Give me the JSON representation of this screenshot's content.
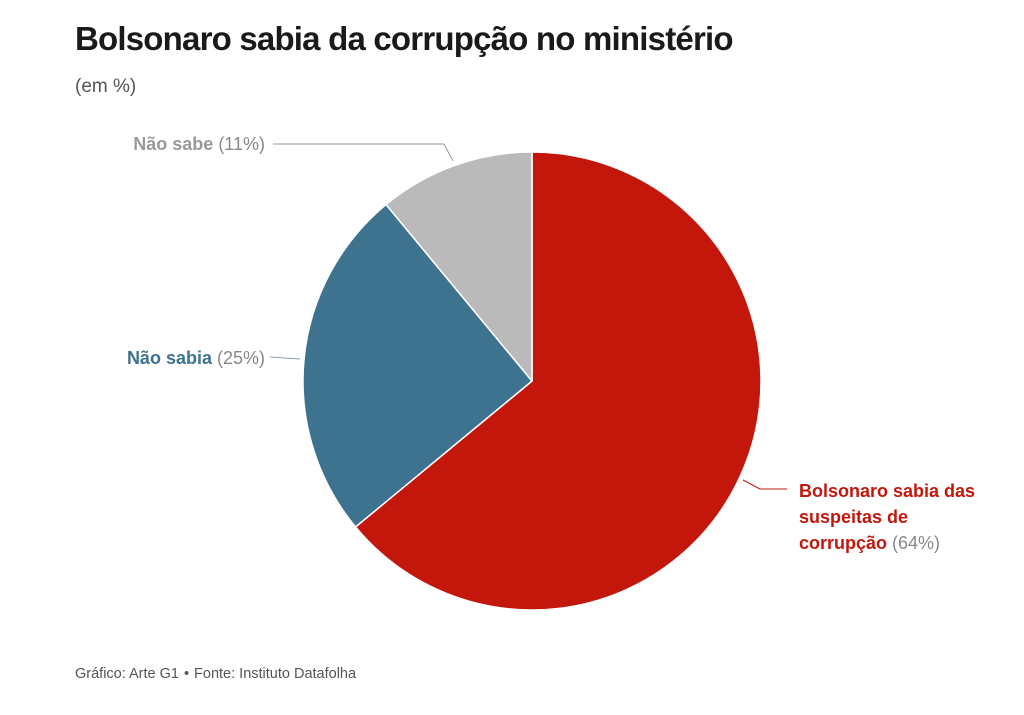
{
  "header": {
    "title": "Bolsonaro sabia da corrupção no ministério",
    "subtitle": "(em %)"
  },
  "chart_data": {
    "type": "pie",
    "title": "Bolsonaro sabia da corrupção no ministério",
    "subtitle": "(em %)",
    "slices": [
      {
        "label_lines": [
          "Bolsonaro sabia das",
          "suspeitas de",
          "corrupção"
        ],
        "label": "Bolsonaro sabia das suspeitas de corrupção",
        "value": 64,
        "value_label": "(64%)",
        "color": "#c3170b"
      },
      {
        "label_lines": [
          "Não sabia"
        ],
        "label": "Não sabia",
        "value": 25,
        "value_label": "(25%)",
        "color": "#3e7390"
      },
      {
        "label_lines": [
          "Não sabe"
        ],
        "label": "Não sabe",
        "value": 11,
        "value_label": "(11%)",
        "color": "#bababa"
      }
    ],
    "start": "12 o'clock",
    "direction": "clockwise",
    "label_colors": [
      "#c3170b",
      "#3e7390",
      "#999999"
    ]
  },
  "footer": {
    "credit": "Gráfico: Arte G1",
    "separator": "•",
    "source": "Fonte: Instituto Datafolha"
  }
}
